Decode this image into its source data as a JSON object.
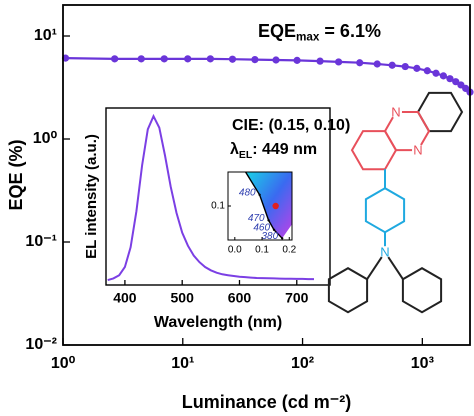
{
  "chart_data": [
    {
      "type": "line",
      "log_x": true,
      "log_y": true,
      "color": "#6a35d9",
      "x_label": "Luminance (cd m⁻²)",
      "y_label": "EQE (%)",
      "annotation": {
        "text": "EQE",
        "subscript": "max",
        "rest": " = 6.1%"
      },
      "x": [
        1.05,
        2.7,
        4.5,
        7,
        11,
        17,
        26,
        40,
        60,
        90,
        140,
        200,
        300,
        420,
        560,
        720,
        900,
        1100,
        1300,
        1500,
        1700,
        1900,
        2100,
        2300,
        2500
      ],
      "values": [
        6.1,
        6.0,
        6.0,
        6.0,
        6.0,
        6.0,
        5.95,
        5.9,
        5.85,
        5.8,
        5.7,
        5.6,
        5.5,
        5.35,
        5.2,
        5.05,
        4.85,
        4.6,
        4.35,
        4.1,
        3.85,
        3.6,
        3.35,
        3.1,
        2.85
      ],
      "xlim": [
        1,
        2500
      ],
      "ylim": [
        0.01,
        20
      ],
      "xticks": [
        {
          "value": 1,
          "label": "10⁰"
        },
        {
          "value": 10,
          "label": "10¹"
        },
        {
          "value": 100,
          "label": "10²"
        },
        {
          "value": 1000,
          "label": "10³"
        }
      ],
      "yticks": [
        {
          "value": 0.01,
          "label": "10⁻²"
        },
        {
          "value": 0.1,
          "label": "10⁻¹"
        },
        {
          "value": 1,
          "label": "10⁰"
        },
        {
          "value": 10,
          "label": "10¹"
        }
      ]
    },
    {
      "type": "line",
      "log_x": false,
      "log_y": false,
      "color": "#7b3fe4",
      "x_label": "Wavelength (nm)",
      "y_label": "EL intensity (a.u.)",
      "x": [
        370,
        380,
        390,
        400,
        410,
        420,
        430,
        440,
        450,
        460,
        470,
        480,
        490,
        500,
        510,
        520,
        530,
        540,
        550,
        560,
        570,
        580,
        590,
        600,
        610,
        620,
        630,
        640,
        650,
        660,
        670,
        680,
        690,
        700,
        710,
        720,
        730
      ],
      "values": [
        0.0,
        0.01,
        0.03,
        0.08,
        0.2,
        0.42,
        0.7,
        0.92,
        1.0,
        0.93,
        0.76,
        0.57,
        0.41,
        0.29,
        0.21,
        0.15,
        0.11,
        0.08,
        0.06,
        0.045,
        0.035,
        0.03,
        0.025,
        0.02,
        0.018,
        0.015,
        0.013,
        0.012,
        0.011,
        0.01,
        0.009,
        0.008,
        0.008,
        0.007,
        0.007,
        0.006,
        0.006
      ],
      "xlim": [
        367,
        758
      ],
      "ylim": [
        -0.03,
        1.05
      ],
      "xticks": [
        400,
        500,
        600,
        700
      ]
    },
    {
      "type": "cie",
      "label": "CIE: (0.15, 0.10)",
      "annotation": {
        "text": "λ",
        "subscript": "EL",
        "rest": ": 449 nm"
      },
      "xlim": [
        -0.025,
        0.21
      ],
      "ylim": [
        0,
        0.2
      ],
      "xticks": [
        {
          "value": 0,
          "label": "0.0"
        },
        0.1,
        0.2
      ],
      "yticks": [
        0.1
      ],
      "locus": [
        {
          "label": "480",
          "x": 0.091,
          "y": 0.133
        },
        {
          "label": "470",
          "x": 0.124,
          "y": 0.058
        },
        {
          "label": "460",
          "x": 0.144,
          "y": 0.03
        },
        {
          "label": "380",
          "x": 0.174,
          "y": 0.005
        }
      ],
      "point": {
        "x": 0.15,
        "y": 0.1,
        "color": "#e02020"
      }
    }
  ],
  "molecule": {
    "atoms": [
      "N",
      "N",
      "N"
    ]
  }
}
